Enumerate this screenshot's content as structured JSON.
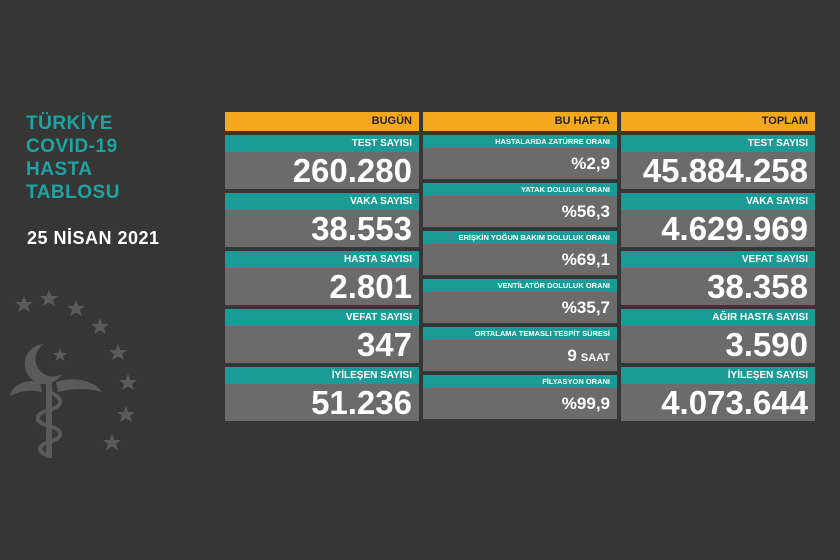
{
  "title_lines": [
    "TÜRKİYE",
    "COVID-19",
    "HASTA",
    "TABLOSU"
  ],
  "date": "25 NİSAN 2021",
  "colors": {
    "background": "#363636",
    "header": "#f4a81d",
    "label": "#1a9b96",
    "value_bg": "#6b6b6b",
    "title": "#1fa3a0"
  },
  "emblem_icon": "ministry-of-health-emblem-icon",
  "today": {
    "header": "BUGÜN",
    "items": [
      {
        "label": "TEST SAYISI",
        "value": "260.280"
      },
      {
        "label": "VAKA SAYISI",
        "value": "38.553"
      },
      {
        "label": "HASTA SAYISI",
        "value": "2.801"
      },
      {
        "label": "VEFAT SAYISI",
        "value": "347"
      },
      {
        "label": "İYİLEŞEN SAYISI",
        "value": "51.236"
      }
    ]
  },
  "week": {
    "header": "BU HAFTA",
    "items": [
      {
        "label": "HASTALARDA ZATÜRRE ORANI",
        "value": "%2,9",
        "unit": ""
      },
      {
        "label": "YATAK DOLULUK ORANI",
        "value": "%56,3",
        "unit": ""
      },
      {
        "label": "ERİŞKİN YOĞUN BAKIM DOLULUK ORANI",
        "value": "%69,1",
        "unit": ""
      },
      {
        "label": "VENTİLATÖR DOLULUK ORANI",
        "value": "%35,7",
        "unit": ""
      },
      {
        "label": "ORTALAMA TEMASLI TESPİT SÜRESİ",
        "value": "9",
        "unit": "SAAT"
      },
      {
        "label": "FİLYASYON ORANI",
        "value": "%99,9",
        "unit": ""
      }
    ]
  },
  "total": {
    "header": "TOPLAM",
    "items": [
      {
        "label": "TEST SAYISI",
        "value": "45.884.258"
      },
      {
        "label": "VAKA SAYISI",
        "value": "4.629.969"
      },
      {
        "label": "VEFAT SAYISI",
        "value": "38.358"
      },
      {
        "label": "AĞIR HASTA SAYISI",
        "value": "3.590"
      },
      {
        "label": "İYİLEŞEN SAYISI",
        "value": "4.073.644"
      }
    ]
  }
}
